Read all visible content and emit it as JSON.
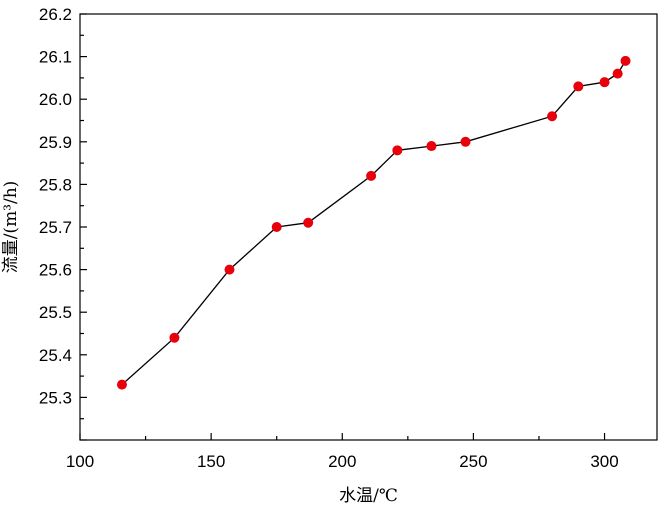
{
  "chart_data": {
    "type": "line",
    "title": "",
    "xlabel": "水温/℃",
    "ylabel": "流量/(m³/h)",
    "xlim": [
      100,
      320
    ],
    "ylim": [
      25.2,
      26.2
    ],
    "xticks": [
      100,
      150,
      200,
      250,
      300
    ],
    "yticks": [
      25.3,
      25.4,
      25.5,
      25.6,
      25.7,
      25.8,
      25.9,
      26.0,
      26.1,
      26.2
    ],
    "grid": false,
    "series": [
      {
        "name": "",
        "line_color": "#000000",
        "marker_color": "#e8000b",
        "x": [
          116,
          136,
          157,
          175,
          187,
          211,
          221,
          234,
          247,
          280,
          290,
          300,
          305,
          308
        ],
        "y": [
          25.33,
          25.44,
          25.6,
          25.7,
          25.71,
          25.82,
          25.88,
          25.89,
          25.9,
          25.96,
          26.03,
          26.04,
          26.06,
          26.09
        ]
      }
    ]
  }
}
